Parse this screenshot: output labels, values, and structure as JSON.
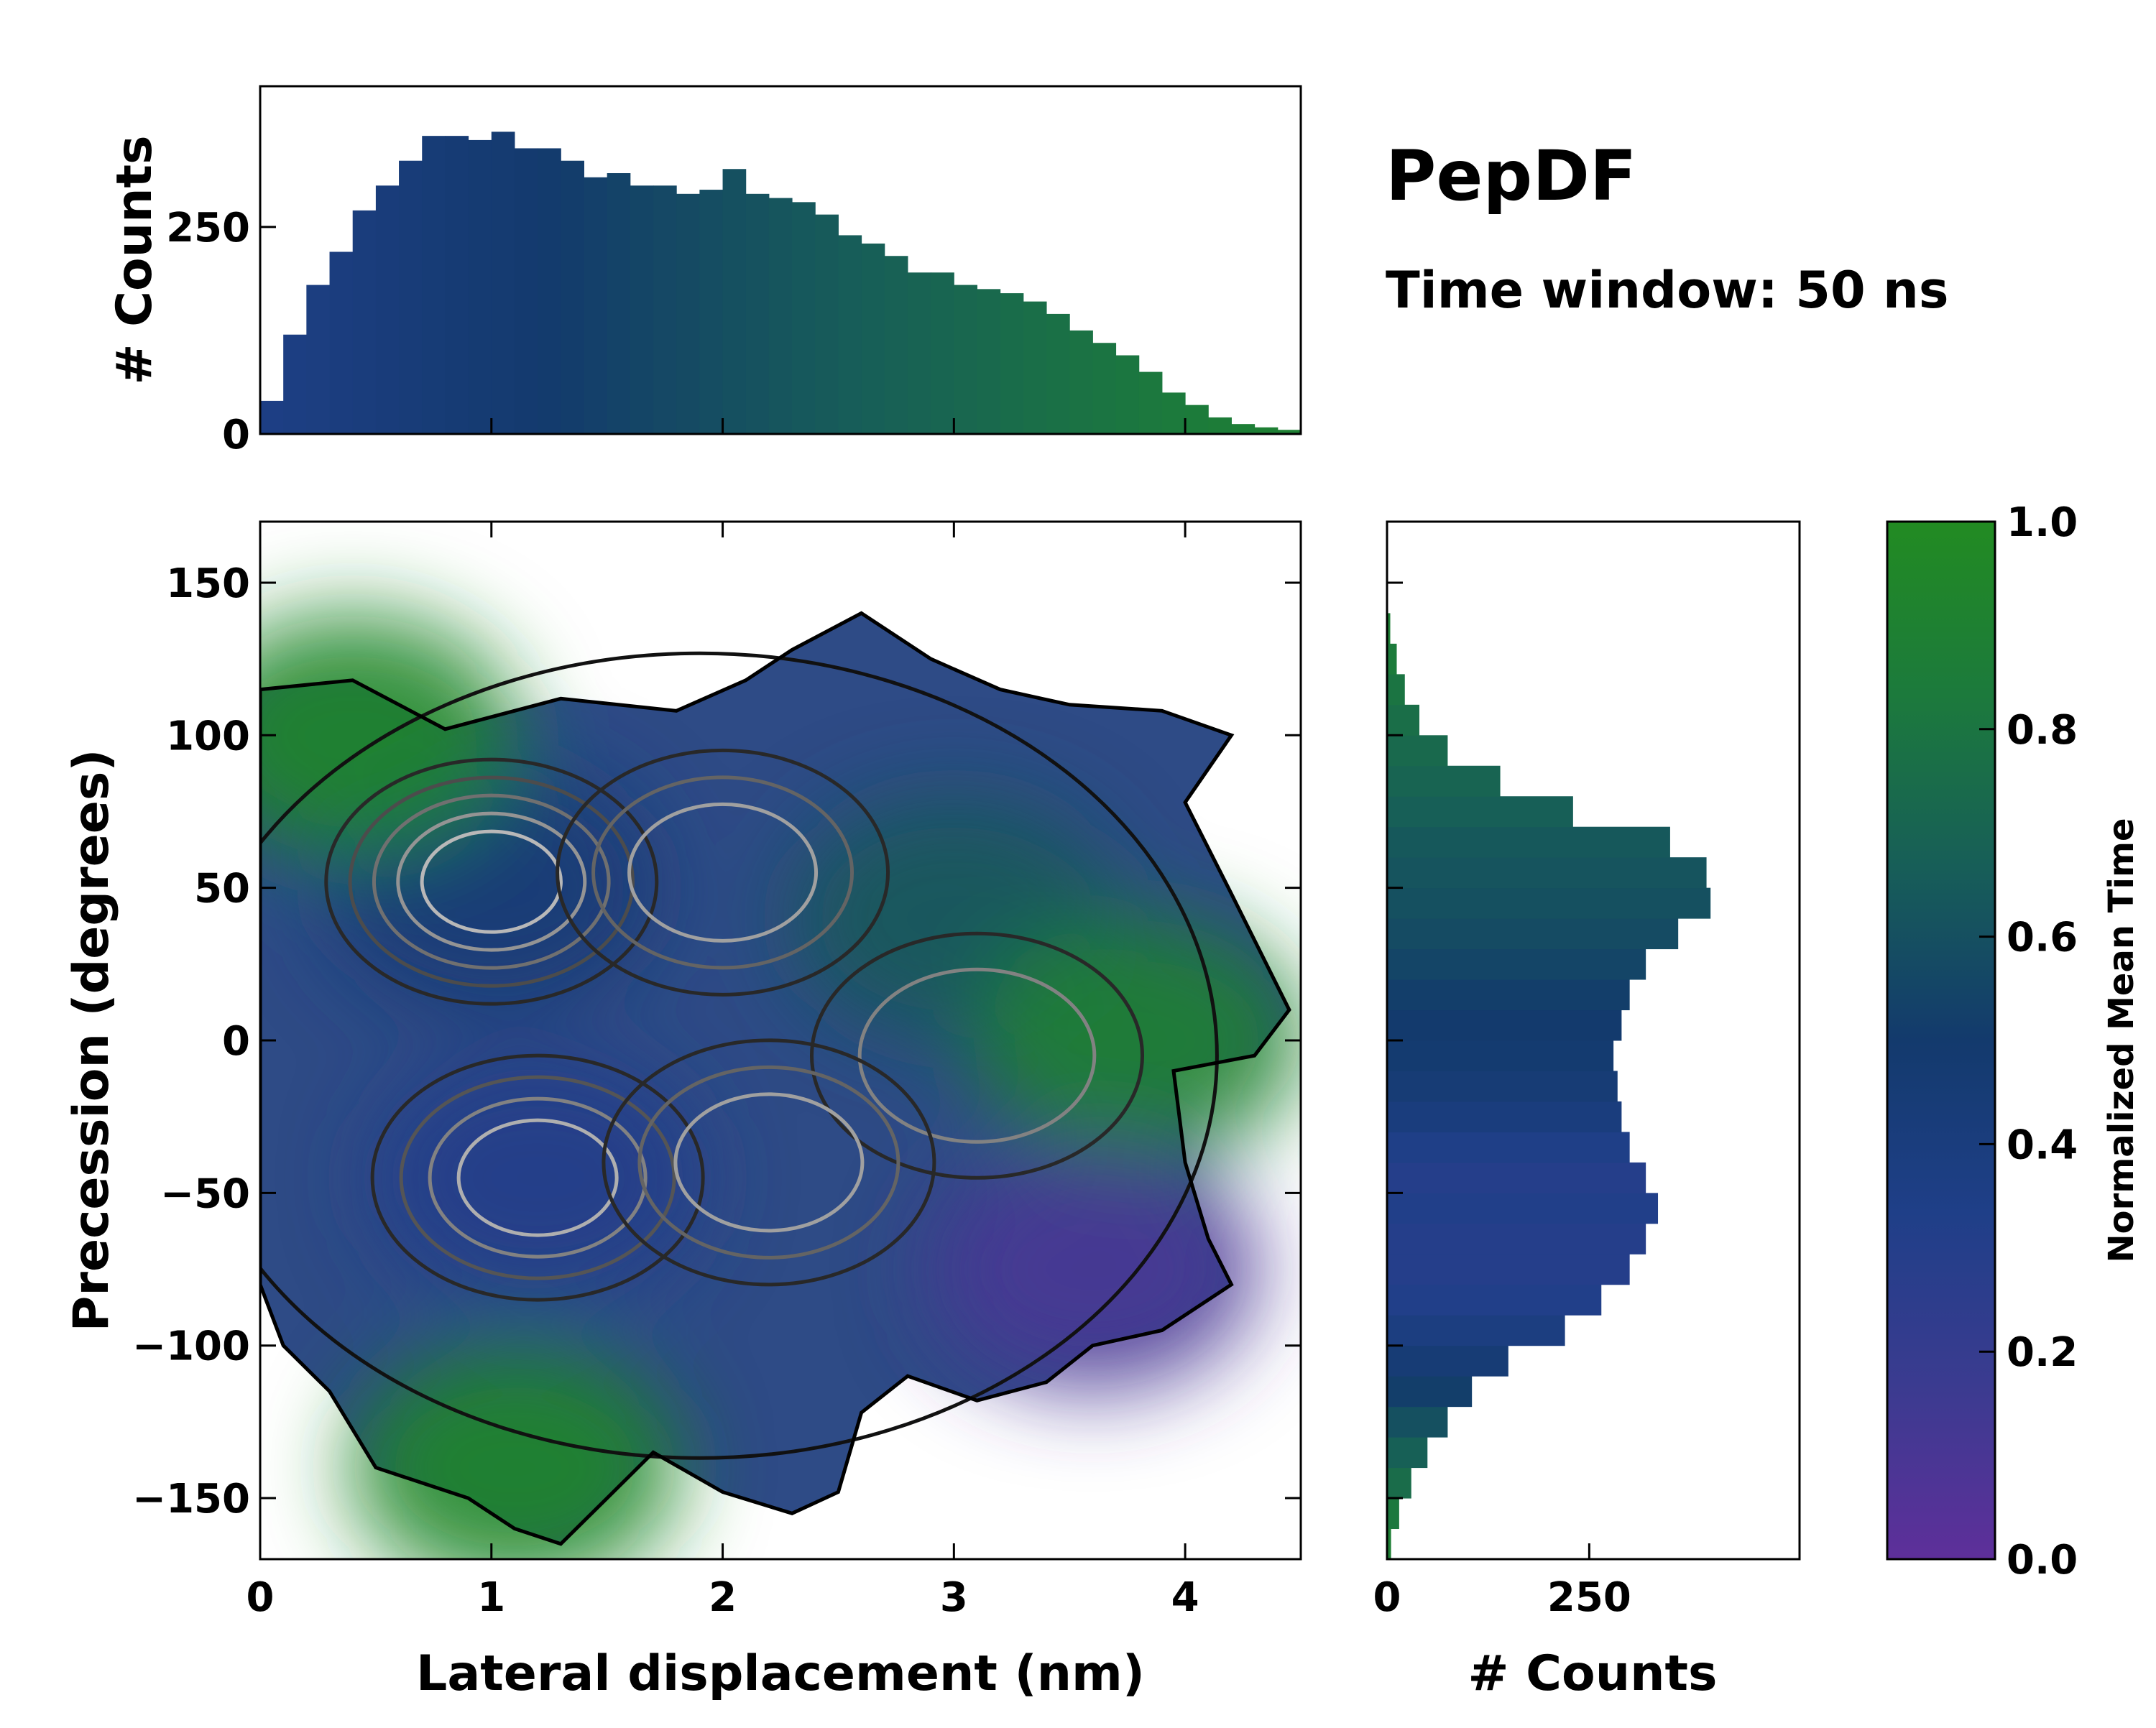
{
  "chart_data": [
    {
      "id": "joint",
      "type": "heatmap",
      "title": "PepDF",
      "subtitle": "Time window: 50 ns",
      "xlabel": "Lateral displacement (nm)",
      "ylabel": "Precession (degrees)",
      "xlim": [
        0,
        4.5
      ],
      "ylim": [
        -170,
        170
      ],
      "xticks": [
        0,
        1,
        2,
        3,
        4
      ],
      "xtick_labels": [
        "0",
        "1",
        "2",
        "3",
        "4"
      ],
      "yticks": [
        -150,
        -100,
        -50,
        0,
        50,
        100,
        150
      ],
      "ytick_labels": [
        "−150",
        "−100",
        "−50",
        "0",
        "50",
        "100",
        "150"
      ],
      "color_encoding": "Normalized Mean Time",
      "density_regions": [
        {
          "name": "upper-left core",
          "x": 1.0,
          "y": 50,
          "time": 0.45
        },
        {
          "name": "lower-left core",
          "x": 1.2,
          "y": -45,
          "time": 0.3
        },
        {
          "name": "right-upper lobe",
          "x": 3.0,
          "y": 40,
          "time": 0.65
        },
        {
          "name": "right green lobe",
          "x": 3.8,
          "y": 0,
          "time": 0.9
        },
        {
          "name": "lower-right purple lobe",
          "x": 3.6,
          "y": -75,
          "time": 0.1
        },
        {
          "name": "bottom green lobe",
          "x": 1.1,
          "y": -140,
          "time": 0.95
        },
        {
          "name": "top-left green lobe",
          "x": 0.4,
          "y": 100,
          "time": 0.95
        }
      ]
    },
    {
      "id": "top-histogram",
      "type": "bar",
      "ylabel": "# Counts",
      "xlim": [
        0,
        4.5
      ],
      "ylim": [
        0,
        420
      ],
      "yticks": [
        0,
        250
      ],
      "ytick_labels": [
        "0",
        "250"
      ],
      "x": [
        0.05,
        0.15,
        0.25,
        0.35,
        0.45,
        0.55,
        0.65,
        0.75,
        0.85,
        0.95,
        1.05,
        1.15,
        1.25,
        1.35,
        1.45,
        1.55,
        1.65,
        1.75,
        1.85,
        1.95,
        2.05,
        2.15,
        2.25,
        2.35,
        2.45,
        2.55,
        2.65,
        2.75,
        2.85,
        2.95,
        3.05,
        3.15,
        3.25,
        3.35,
        3.45,
        3.55,
        3.65,
        3.75,
        3.85,
        3.95,
        4.05,
        4.15,
        4.25,
        4.35,
        4.45
      ],
      "values": [
        40,
        120,
        180,
        220,
        270,
        300,
        330,
        360,
        360,
        355,
        365,
        345,
        345,
        330,
        310,
        315,
        300,
        300,
        290,
        295,
        320,
        290,
        285,
        280,
        265,
        240,
        230,
        215,
        195,
        195,
        180,
        175,
        170,
        160,
        145,
        125,
        110,
        95,
        75,
        50,
        35,
        20,
        12,
        8,
        5
      ]
    },
    {
      "id": "right-histogram",
      "type": "bar",
      "orientation": "horizontal",
      "xlabel": "# Counts",
      "xlim": [
        0,
        510
      ],
      "xticks": [
        0,
        250
      ],
      "xtick_labels": [
        "0",
        "250"
      ],
      "ylim": [
        -170,
        170
      ],
      "y": [
        -165,
        -155,
        -145,
        -135,
        -125,
        -115,
        -105,
        -95,
        -85,
        -75,
        -65,
        -55,
        -45,
        -35,
        -25,
        -15,
        -5,
        5,
        15,
        25,
        35,
        45,
        55,
        65,
        75,
        85,
        95,
        105,
        115,
        125,
        135
      ],
      "values": [
        5,
        15,
        30,
        50,
        75,
        105,
        150,
        220,
        265,
        300,
        320,
        335,
        320,
        300,
        290,
        285,
        280,
        290,
        300,
        320,
        360,
        400,
        395,
        350,
        230,
        140,
        75,
        40,
        22,
        12,
        4
      ],
      "series_time": [
        0.88,
        0.82,
        0.75,
        0.68,
        0.6,
        0.52,
        0.45,
        0.38,
        0.32,
        0.3,
        0.3,
        0.32,
        0.3,
        0.34,
        0.4,
        0.45,
        0.48,
        0.5,
        0.52,
        0.55,
        0.58,
        0.6,
        0.62,
        0.64,
        0.67,
        0.7,
        0.73,
        0.76,
        0.8,
        0.84,
        0.88
      ]
    },
    {
      "id": "colorbar",
      "type": "colorbar",
      "label": "Normalized Mean Time",
      "range": [
        0.0,
        1.0
      ],
      "ticks": [
        0.0,
        0.2,
        0.4,
        0.6,
        0.8,
        1.0
      ],
      "tick_labels": [
        "0.0",
        "0.2",
        "0.4",
        "0.6",
        "0.8",
        "1.0"
      ],
      "colors": [
        "#5e2f9a",
        "#3b3b90",
        "#1f3f88",
        "#133a6d",
        "#175e58",
        "#1c7a3c",
        "#228b22"
      ]
    }
  ]
}
